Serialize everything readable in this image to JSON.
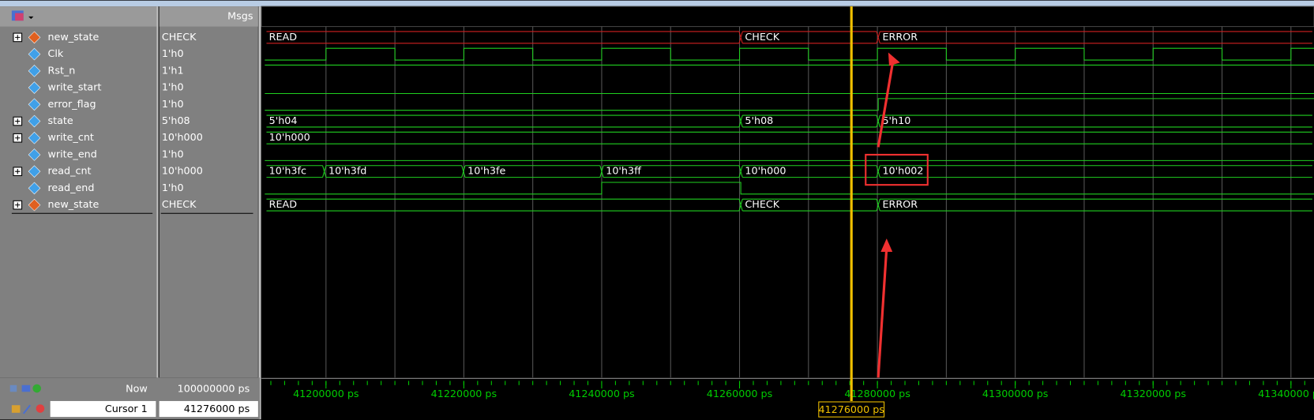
{
  "header": {
    "msgs": "Msgs"
  },
  "signals": [
    {
      "name": "new_state",
      "value": "CHECK",
      "wave_labels": [
        "READ",
        "CHECK",
        "ERROR"
      ]
    },
    {
      "name": "Clk",
      "value": "1'h0"
    },
    {
      "name": "Rst_n",
      "value": "1'h1"
    },
    {
      "name": "write_start",
      "value": "1'h0"
    },
    {
      "name": "error_flag",
      "value": "1'h0"
    },
    {
      "name": "state",
      "value": "5'h08",
      "wave_labels": [
        "5'h04",
        "5'h08",
        "5'h10"
      ]
    },
    {
      "name": "write_cnt",
      "value": "10'h000",
      "wave_labels": [
        "10'h000"
      ]
    },
    {
      "name": "write_end",
      "value": "1'h0"
    },
    {
      "name": "read_cnt",
      "value": "10'h000",
      "wave_labels": [
        "10'h3fc",
        "10'h3fd",
        "10'h3fe",
        "10'h3ff",
        "10'h000",
        "10'h002"
      ]
    },
    {
      "name": "read_end",
      "value": "1'h0"
    },
    {
      "name": "new_state",
      "value": "CHECK",
      "wave_labels": [
        "READ",
        "CHECK",
        "ERROR"
      ]
    }
  ],
  "footer": {
    "now_label": "Now",
    "now_value": "100000000 ps",
    "cursor_label": "Cursor 1",
    "cursor_value": "41276000 ps",
    "cursor_time": "41276000 ps"
  },
  "timeline": [
    "41200000 ps",
    "41220000 ps",
    "41240000 ps",
    "41260000 ps",
    "41280000 ps",
    "41300000 ps",
    "41320000 ps",
    "41340000 ps"
  ]
}
